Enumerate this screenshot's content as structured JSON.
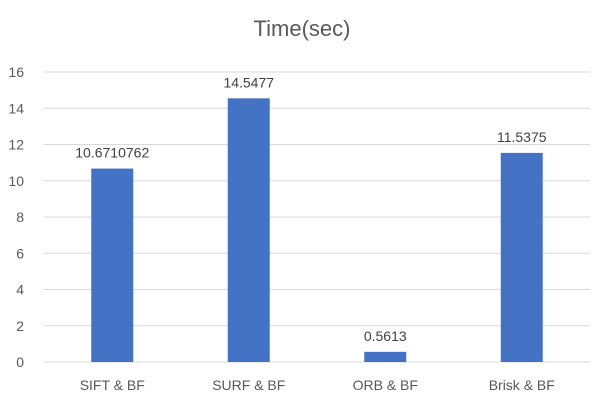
{
  "chart_data": {
    "type": "bar",
    "title": "Time(sec)",
    "categories": [
      "SIFT & BF",
      "SURF & BF",
      "ORB & BF",
      "Brisk & BF"
    ],
    "values": [
      10.6710762,
      14.5477,
      0.5613,
      11.5375
    ],
    "data_labels": [
      "10.6710762",
      "14.5477",
      "0.5613",
      "11.5375"
    ],
    "ylim": [
      0,
      16
    ],
    "yticks": [
      0,
      2,
      4,
      6,
      8,
      10,
      12,
      14,
      16
    ],
    "grid": true,
    "bar_color": "#4472C4",
    "grid_color": "#D9D9D9"
  }
}
